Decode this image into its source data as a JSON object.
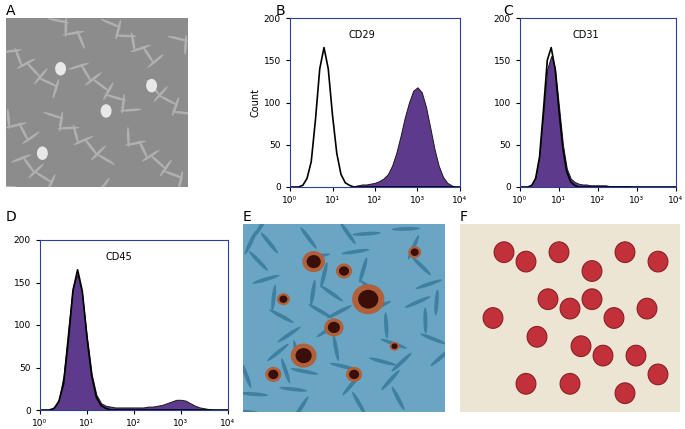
{
  "panel_labels": [
    "A",
    "B",
    "C",
    "D",
    "E",
    "F"
  ],
  "chart_data": [
    {
      "type": "line",
      "title": "CD29",
      "y_label": "Count",
      "log": "x",
      "x": [
        1,
        1.26,
        1.58,
        2.0,
        2.51,
        3.16,
        3.98,
        5.01,
        6.31,
        7.94,
        10,
        12.6,
        15.8,
        20,
        25.1,
        31.6,
        39.8,
        50.1,
        63.1,
        79.4,
        100,
        126,
        158,
        200,
        251,
        316,
        398,
        501,
        631,
        794,
        1000,
        1260,
        1580,
        2000,
        2510,
        3160,
        3980,
        5010,
        6310,
        7940,
        10000
      ],
      "xlim": [
        1,
        10000
      ],
      "ylim": [
        0,
        200
      ],
      "xticks": [
        {
          "value": 1,
          "label": "10⁰"
        },
        {
          "value": 10,
          "label": "10¹"
        },
        {
          "value": 100,
          "label": "10²"
        },
        {
          "value": 1000,
          "label": "10³"
        },
        {
          "value": 10000,
          "label": "10⁴"
        }
      ],
      "yticks": [
        0,
        50,
        100,
        150,
        200
      ],
      "series": [
        {
          "type": "area",
          "color": "#5e3a8c",
          "values": [
            0,
            0,
            0,
            0,
            0,
            0,
            0,
            0,
            0,
            0,
            0,
            0,
            0,
            0,
            0,
            1,
            2,
            3,
            3,
            4,
            5,
            7,
            10,
            15,
            25,
            40,
            60,
            82,
            100,
            114,
            118,
            112,
            95,
            70,
            45,
            25,
            12,
            5,
            2,
            0,
            0
          ]
        },
        {
          "type": "line",
          "color": "#000000",
          "values": [
            0,
            0,
            0,
            2,
            10,
            30,
            80,
            140,
            165,
            140,
            85,
            40,
            15,
            5,
            2,
            0,
            0,
            0,
            0,
            0,
            0,
            0,
            0,
            0,
            0,
            0,
            0,
            0,
            0,
            0,
            0,
            0,
            0,
            0,
            0,
            0,
            0,
            0,
            0,
            0,
            0
          ]
        }
      ]
    },
    {
      "type": "line",
      "title": "CD31",
      "log": "x",
      "x": [
        1,
        1.26,
        1.58,
        2.0,
        2.51,
        3.16,
        3.98,
        5.01,
        6.31,
        7.94,
        10,
        12.6,
        15.8,
        20,
        25.1,
        31.6,
        39.8,
        50.1,
        63.1,
        79.4,
        100,
        126,
        158,
        200,
        251,
        316,
        398,
        501,
        631,
        794,
        1000,
        1260,
        1580,
        2000,
        2510,
        3160,
        3980,
        5010,
        6310,
        7940,
        10000
      ],
      "xlim": [
        1,
        10000
      ],
      "ylim": [
        0,
        200
      ],
      "xticks": [
        {
          "value": 1,
          "label": "10⁰"
        },
        {
          "value": 10,
          "label": "10¹"
        },
        {
          "value": 100,
          "label": "10²"
        },
        {
          "value": 1000,
          "label": "10³"
        },
        {
          "value": 10000,
          "label": "10⁴"
        }
      ],
      "yticks": [
        0,
        50,
        100,
        150,
        200
      ],
      "series": [
        {
          "type": "area",
          "color": "#5e3a8c",
          "values": [
            0,
            0,
            0,
            3,
            12,
            38,
            88,
            140,
            155,
            140,
            95,
            50,
            22,
            10,
            6,
            4,
            3,
            3,
            2,
            2,
            2,
            2,
            2,
            1,
            1,
            1,
            1,
            1,
            1,
            0,
            0,
            0,
            0,
            0,
            0,
            0,
            0,
            0,
            0,
            0,
            0
          ]
        },
        {
          "type": "line",
          "color": "#000000",
          "values": [
            0,
            0,
            0,
            2,
            10,
            35,
            90,
            150,
            165,
            140,
            90,
            45,
            18,
            6,
            2,
            0,
            0,
            0,
            0,
            0,
            0,
            0,
            0,
            0,
            0,
            0,
            0,
            0,
            0,
            0,
            0,
            0,
            0,
            0,
            0,
            0,
            0,
            0,
            0,
            0,
            0
          ]
        }
      ]
    },
    {
      "type": "line",
      "title": "CD45",
      "log": "x",
      "x": [
        1,
        1.26,
        1.58,
        2.0,
        2.51,
        3.16,
        3.98,
        5.01,
        6.31,
        7.94,
        10,
        12.6,
        15.8,
        20,
        25.1,
        31.6,
        39.8,
        50.1,
        63.1,
        79.4,
        100,
        126,
        158,
        200,
        251,
        316,
        398,
        501,
        631,
        794,
        1000,
        1260,
        1580,
        2000,
        2510,
        3160,
        3980,
        5010,
        6310,
        7940,
        10000
      ],
      "xlim": [
        1,
        10000
      ],
      "ylim": [
        0,
        200
      ],
      "xticks": [
        {
          "value": 1,
          "label": "10⁰"
        },
        {
          "value": 10,
          "label": "10¹"
        },
        {
          "value": 100,
          "label": "10²"
        },
        {
          "value": 1000,
          "label": "10³"
        },
        {
          "value": 10000,
          "label": "10⁴"
        }
      ],
      "yticks": [
        0,
        50,
        100,
        150,
        200
      ],
      "series": [
        {
          "type": "area",
          "color": "#5e3a8c",
          "values": [
            0,
            0,
            0,
            3,
            12,
            40,
            95,
            145,
            160,
            135,
            85,
            42,
            18,
            8,
            5,
            4,
            3,
            3,
            3,
            3,
            3,
            3,
            3,
            4,
            4,
            5,
            6,
            8,
            10,
            12,
            12,
            11,
            8,
            5,
            3,
            2,
            1,
            0,
            0,
            0,
            0
          ]
        },
        {
          "type": "line",
          "color": "#000000",
          "values": [
            0,
            0,
            0,
            2,
            10,
            30,
            80,
            140,
            165,
            140,
            85,
            40,
            15,
            5,
            2,
            0,
            0,
            0,
            0,
            0,
            0,
            0,
            0,
            0,
            0,
            0,
            0,
            0,
            0,
            0,
            0,
            0,
            0,
            0,
            0,
            0,
            0,
            0,
            0,
            0,
            0
          ]
        }
      ]
    }
  ]
}
